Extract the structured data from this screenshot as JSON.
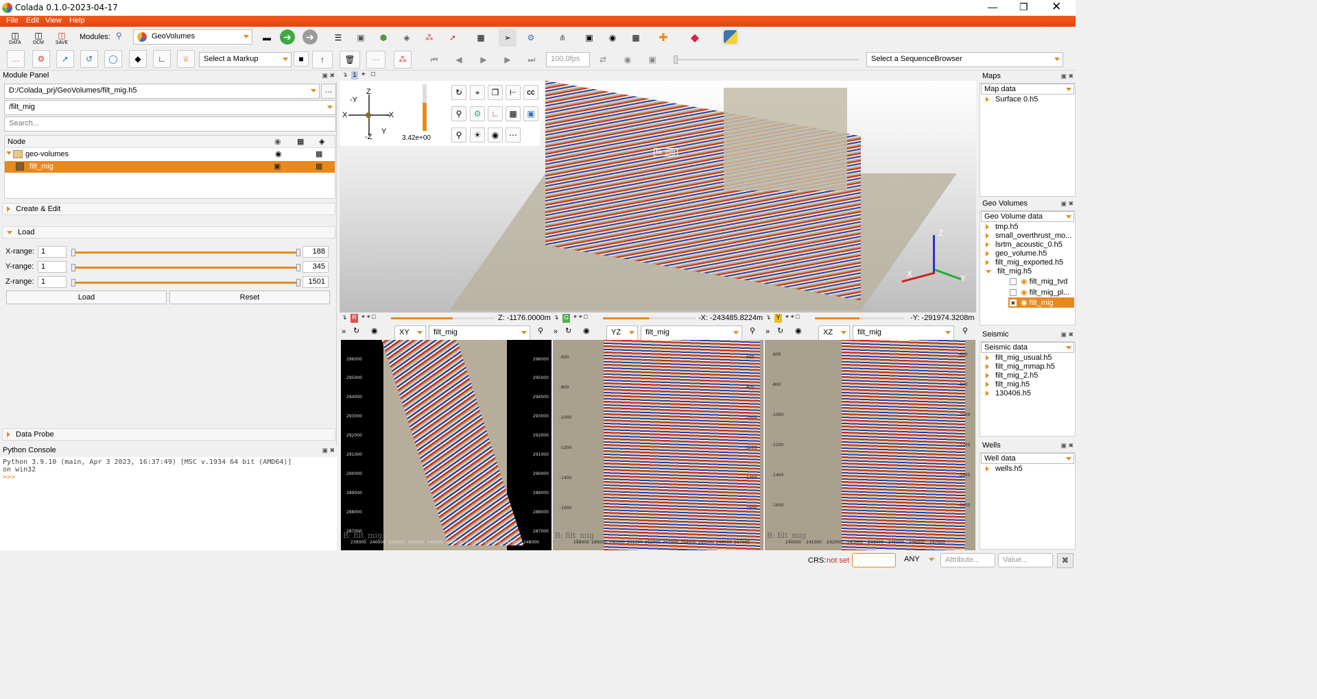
{
  "window": {
    "title": "Colada 0.1.0-2023-04-17"
  },
  "menu": [
    "File",
    "Edit",
    "View",
    "Help"
  ],
  "toolbar1": {
    "buttons": [
      "DATA",
      "DCM",
      "SAVE"
    ],
    "modules_label": "Modules:",
    "module_selected": "GeoVolumes"
  },
  "toolbar2": {
    "markup_select": "Select a Markup",
    "fps": "100.0fps",
    "sequence_select": "Select a SequenceBrowser"
  },
  "module_panel": {
    "title": "Module Panel",
    "file_path": "D:/Colada_prj/GeoVolumes/filt_mig.h5",
    "dataset_path": "/filt_mig",
    "search_placeholder": "Search...",
    "tree_header": "Node",
    "tree": [
      {
        "label": "geo-volumes",
        "level": 0
      },
      {
        "label": "filt_mig",
        "level": 1,
        "selected": true
      }
    ],
    "sections": {
      "create_edit": "Create & Edit",
      "load": "Load",
      "data_probe": "Data Probe"
    },
    "ranges": [
      {
        "label": "X-range:",
        "min": "1",
        "max": "188"
      },
      {
        "label": "Y-range:",
        "min": "1",
        "max": "345"
      },
      {
        "label": "Z-range:",
        "min": "1",
        "max": "1501"
      }
    ],
    "load_button": "Load",
    "reset_button": "Reset"
  },
  "console": {
    "title": "Python Console",
    "line1": "Python 3.9.10 (main, Apr  3 2023, 16:37:49) [MSC v.1934 64 bit (AMD64)]",
    "line2": "on win32",
    "prompt": ">>>"
  },
  "view3d": {
    "layout_number": "1",
    "zoom_value": "3.42e+00",
    "volume_label": "filt_mig",
    "orientation": {
      "z_top": "Z",
      "z_bottom": "-Z",
      "x_left": "X",
      "x_right": "-X",
      "y_top": "-Y",
      "y_bottom": "Y"
    },
    "axes": {
      "x": "X",
      "y": "Y",
      "z": "Z"
    }
  },
  "slices": [
    {
      "badge": "R",
      "badge_color": "#e05050",
      "position": "Z: -1176.0000m",
      "plane": "XY",
      "volume": "filt_mig",
      "watermark": "B: filt_mig",
      "vticks": [
        "296000",
        "295000",
        "294000",
        "293000",
        "292000",
        "291000",
        "290000",
        "289000",
        "288000",
        "287000"
      ],
      "hticks": [
        "239000",
        "240000",
        "241000",
        "242000",
        "243000",
        "244000",
        "245000",
        "246000",
        "247000",
        "248000"
      ]
    },
    {
      "badge": "G",
      "badge_color": "#4fb34f",
      "position": "-X: -243485.8224m",
      "plane": "YZ",
      "volume": "filt_mig",
      "watermark": "B: filt_mig",
      "vticks": [
        "-600",
        "-800",
        "-1000",
        "-1200",
        "-1400",
        "-1600"
      ],
      "hticks": [
        "288000",
        "289000",
        "290000",
        "291000",
        "292000",
        "293000",
        "294000",
        "295000",
        "296000",
        "297000"
      ]
    },
    {
      "badge": "Y",
      "badge_color": "#e8c020",
      "position": "-Y: -291974.3208m",
      "plane": "XZ",
      "volume": "filt_mig",
      "watermark": "B: filt_mig",
      "vticks": [
        "-600",
        "-800",
        "-1000",
        "-1200",
        "-1400",
        "-1600"
      ],
      "hticks": [
        "240000",
        "241000",
        "242000",
        "243000",
        "244000",
        "245000",
        "246000",
        "247000"
      ]
    }
  ],
  "maps": {
    "title": "Maps",
    "combo": "Map data",
    "items": [
      "Surface 0.h5"
    ]
  },
  "geovolumes": {
    "title": "Geo Volumes",
    "combo": "Geo Volume data",
    "items": [
      "tmp.h5",
      "small_overthrust_mo...",
      "lsrtm_acoustic_0.h5",
      "geo_volume.h5",
      "filt_mig_exported.h5",
      "filt_mig.h5"
    ],
    "children": [
      "filt_mig_tvd",
      "filt_mig_pl...",
      "filt_mig"
    ]
  },
  "seismic": {
    "title": "Seismic",
    "combo": "Seismic data",
    "items": [
      "filt_mig_usual.h5",
      "filt_mig_mmap.h5",
      "filt_mig_2.h5",
      "filt_mig.h5",
      "130406.h5"
    ]
  },
  "wells": {
    "title": "Wells",
    "combo": "Well data",
    "items": [
      "wells.h5"
    ]
  },
  "statusbar": {
    "crs_label": "CRS:",
    "crs_value": "not set",
    "any": "ANY",
    "attribute_placeholder": "Attribute...",
    "value_placeholder": "Value..."
  },
  "colors": {
    "accent": "#e8891e",
    "menubar": "#e8440e",
    "selected_row": "#e8891e"
  }
}
